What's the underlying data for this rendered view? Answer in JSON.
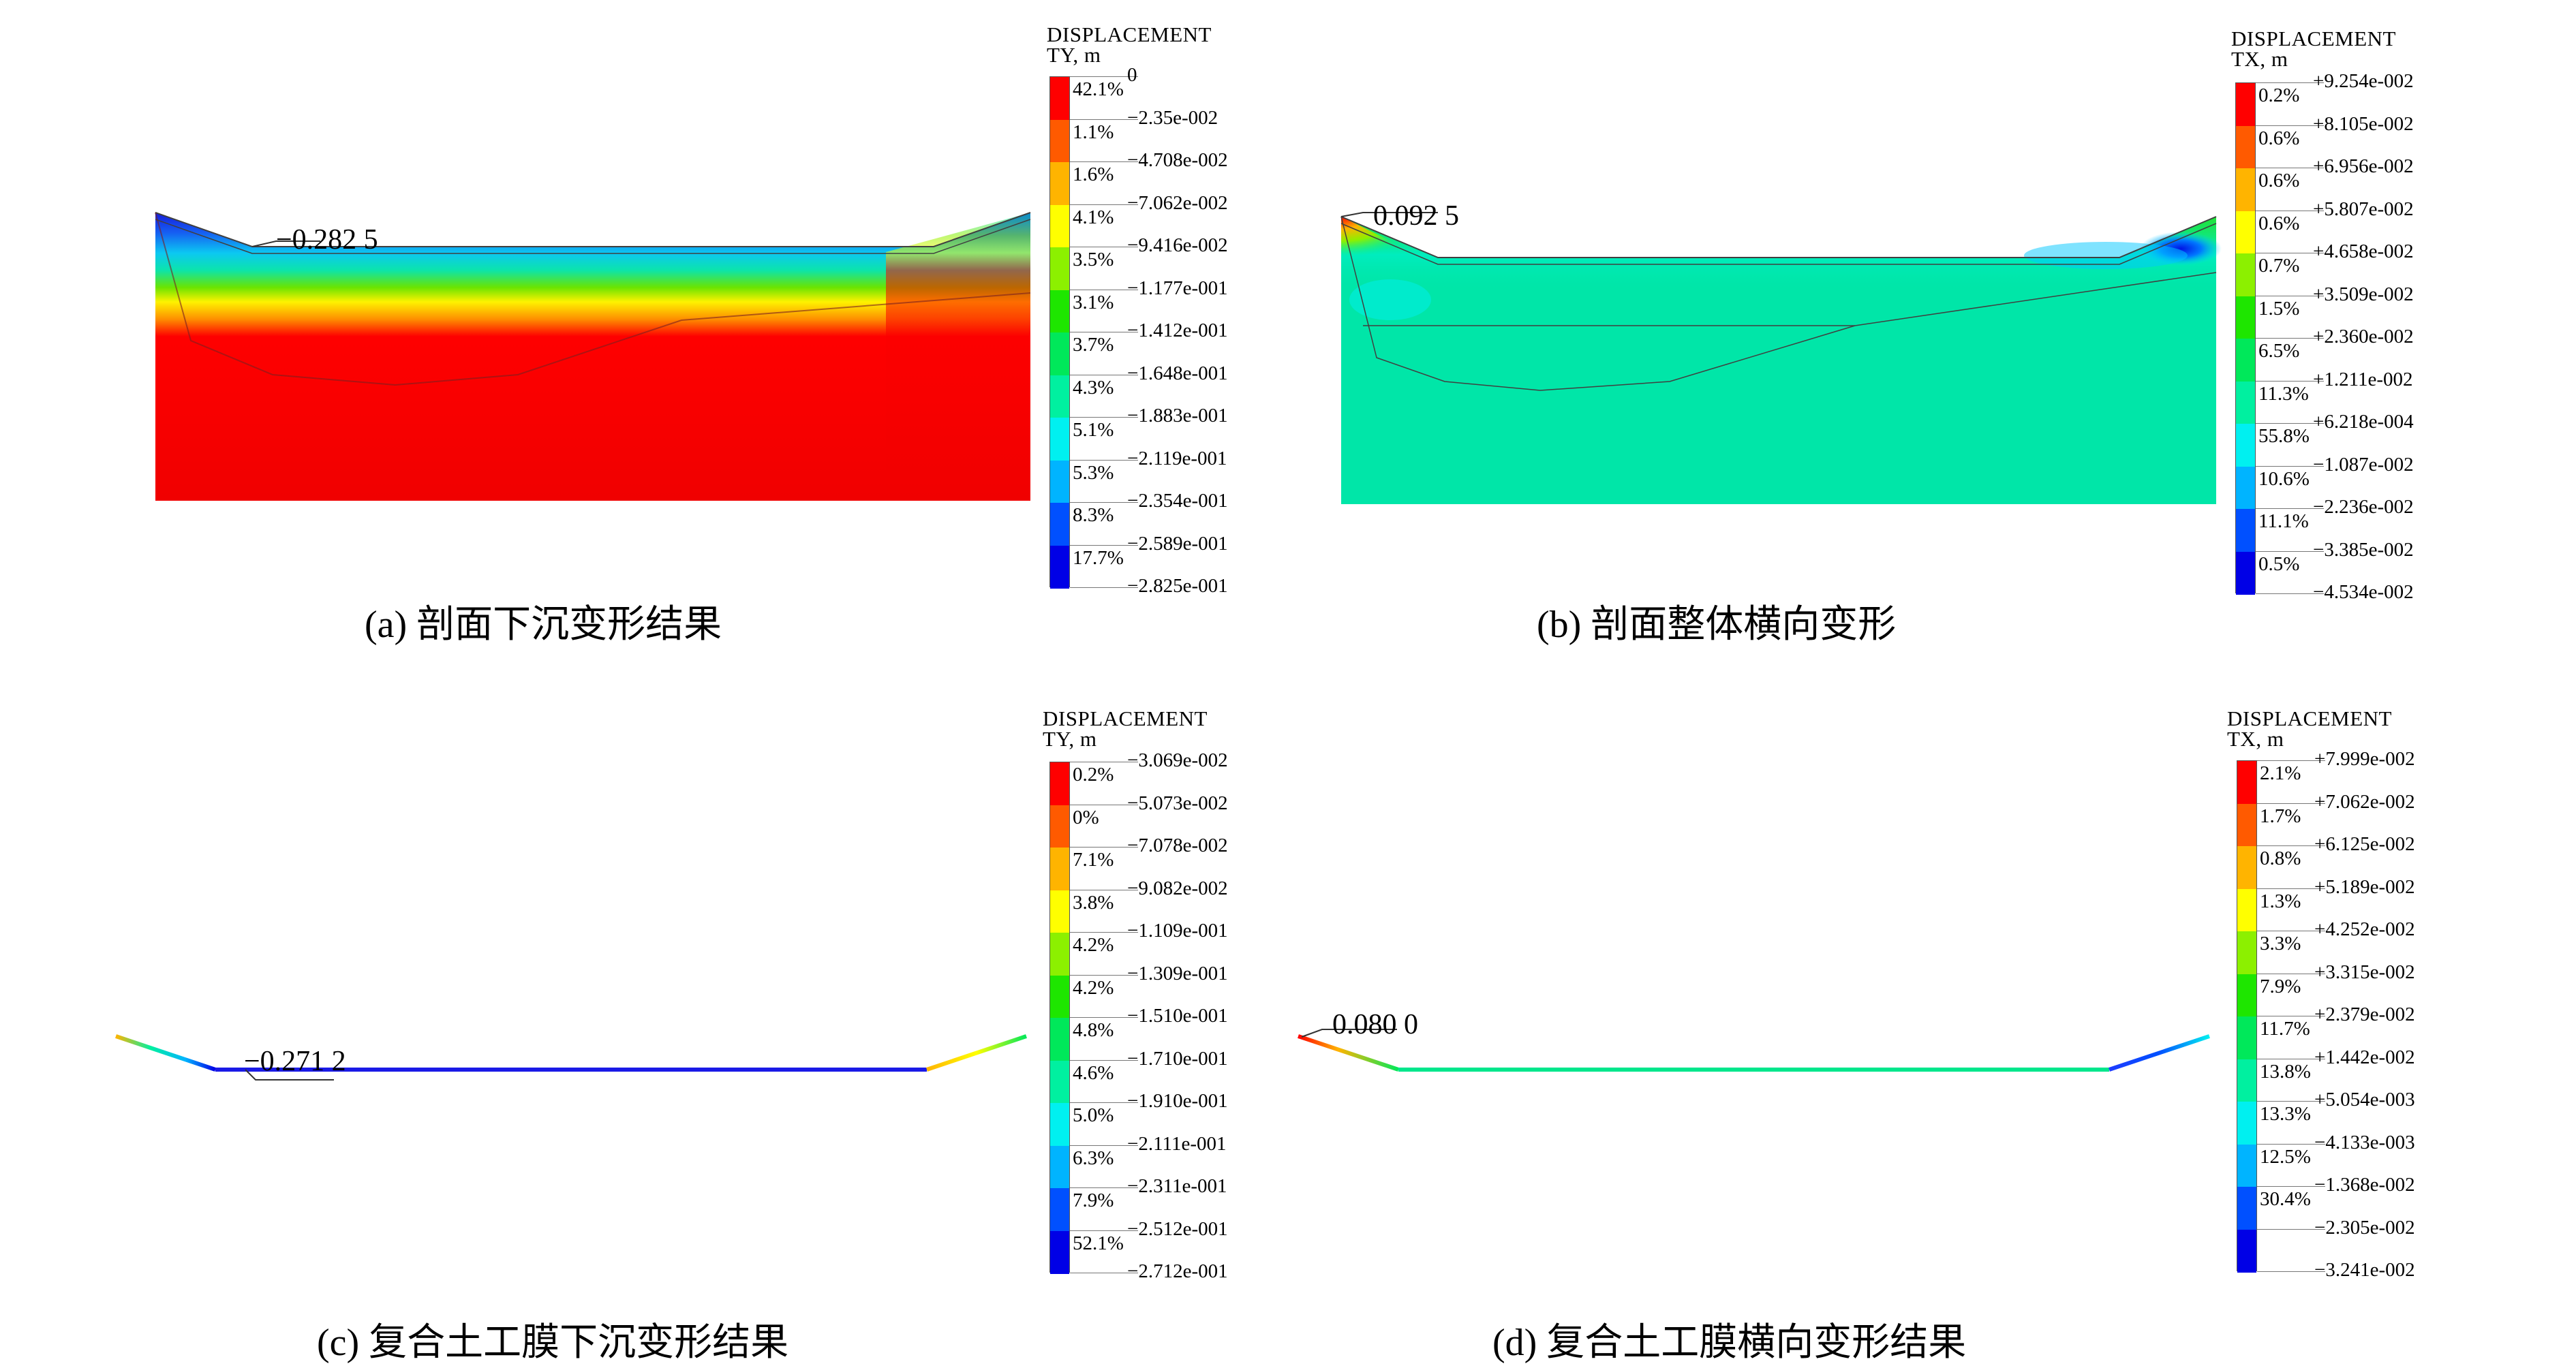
{
  "palette": [
    "#ff0000",
    "#ff5a00",
    "#ffb400",
    "#ffff00",
    "#8cf000",
    "#1ee600",
    "#00e85a",
    "#00f0a0",
    "#00f0f0",
    "#00b4ff",
    "#0050ff",
    "#0000e6"
  ],
  "panels": [
    {
      "id": "a",
      "caption": "(a) 剖面下沉变形结果",
      "annotation": "−0.282 5",
      "legend": {
        "title1": "DISPLACEMENT",
        "title2": "TY, m",
        "percents": [
          "42.1%",
          "1.1%",
          "1.6%",
          "4.1%",
          "3.5%",
          "3.1%",
          "3.7%",
          "4.3%",
          "5.1%",
          "5.3%",
          "8.3%",
          "17.7%"
        ],
        "ticks": [
          "0",
          "−2.35e-002",
          "−4.708e-002",
          "−7.062e-002",
          "−9.416e-002",
          "−1.177e-001",
          "−1.412e-001",
          "−1.648e-001",
          "−1.883e-001",
          "−2.119e-001",
          "−2.354e-001",
          "−2.589e-001",
          "−2.825e-001"
        ]
      }
    },
    {
      "id": "b",
      "caption": "(b) 剖面整体横向变形",
      "annotation": "0.092 5",
      "legend": {
        "title1": "DISPLACEMENT",
        "title2": "TX, m",
        "percents": [
          "0.2%",
          "0.6%",
          "0.6%",
          "0.6%",
          "0.7%",
          "1.5%",
          "6.5%",
          "11.3%",
          "55.8%",
          "10.6%",
          "11.1%",
          "0.5%"
        ],
        "ticks": [
          "+9.254e-002",
          "+8.105e-002",
          "+6.956e-002",
          "+5.807e-002",
          "+4.658e-002",
          "+3.509e-002",
          "+2.360e-002",
          "+1.211e-002",
          "+6.218e-004",
          "−1.087e-002",
          "−2.236e-002",
          "−3.385e-002",
          "−4.534e-002"
        ]
      }
    },
    {
      "id": "c",
      "caption": "(c) 复合土工膜下沉变形结果",
      "annotation": "−0.271 2",
      "legend": {
        "title1": "DISPLACEMENT",
        "title2": "TY, m",
        "percents": [
          "0.2%",
          "0%",
          "7.1%",
          "3.8%",
          "4.2%",
          "4.2%",
          "4.8%",
          "4.6%",
          "5.0%",
          "6.3%",
          "7.9%",
          "52.1%"
        ],
        "ticks": [
          "−3.069e-002",
          "−5.073e-002",
          "−7.078e-002",
          "−9.082e-002",
          "−1.109e-001",
          "−1.309e-001",
          "−1.510e-001",
          "−1.710e-001",
          "−1.910e-001",
          "−2.111e-001",
          "−2.311e-001",
          "−2.512e-001",
          "−2.712e-001"
        ]
      }
    },
    {
      "id": "d",
      "caption": "(d) 复合土工膜横向变形结果",
      "annotation": "0.080 0",
      "legend": {
        "title1": "DISPLACEMENT",
        "title2": "TX, m",
        "percents": [
          "2.1%",
          "1.7%",
          "0.8%",
          "1.3%",
          "3.3%",
          "7.9%",
          "11.7%",
          "13.8%",
          "13.3%",
          "12.5%",
          "30.4%",
          ""
        ],
        "ticks": [
          "+7.999e-002",
          "+7.062e-002",
          "+6.125e-002",
          "+5.189e-002",
          "+4.252e-002",
          "+3.315e-002",
          "+2.379e-002",
          "+1.442e-002",
          "+5.054e-003",
          "−4.133e-003",
          "−1.368e-002",
          "−2.305e-002",
          "−3.241e-002"
        ]
      }
    }
  ]
}
